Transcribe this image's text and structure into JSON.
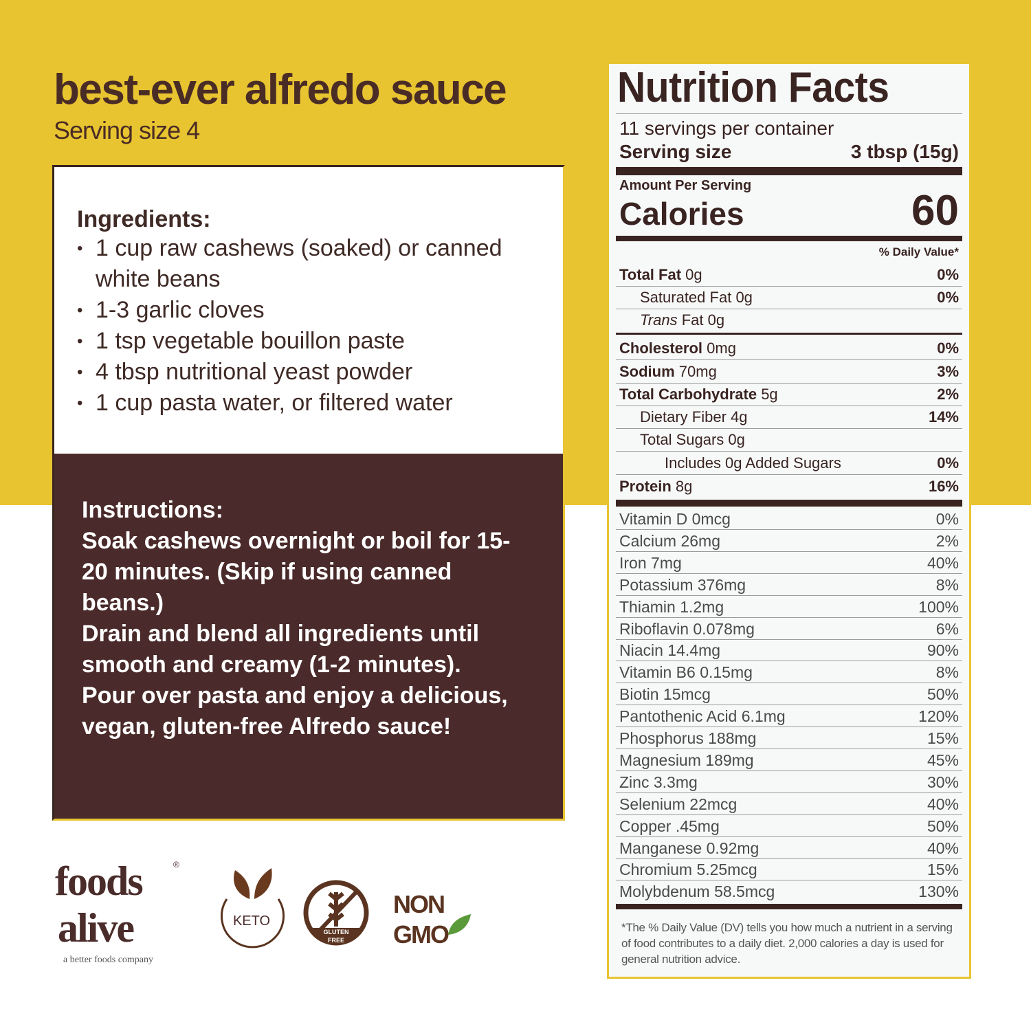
{
  "recipe": {
    "title": "best-ever alfredo sauce",
    "serving_size": "Serving size 4",
    "ingredients_heading": "Ingredients:",
    "ingredients": [
      "1 cup raw cashews (soaked) or canned white beans",
      "1-3 garlic cloves",
      "1 tsp vegetable bouillon paste",
      "4 tbsp nutritional yeast powder",
      "1 cup pasta water, or filtered water"
    ],
    "instructions_heading": "Instructions:",
    "instructions": [
      "Soak cashews overnight or boil for 15-20 minutes. (Skip if using canned beans.)",
      "Drain and blend all ingredients until smooth and creamy (1-2 minutes).",
      "Pour over pasta and enjoy a delicious, vegan, gluten-free Alfredo sauce!"
    ]
  },
  "nutrition": {
    "title": "Nutrition Facts",
    "servings_per_container": "11 servings per container",
    "serving_size_label": "Serving size",
    "serving_size_value": "3 tbsp (15g)",
    "amount_per_serving": "Amount Per Serving",
    "calories_label": "Calories",
    "calories_value": "60",
    "dv_header": "% Daily Value*",
    "main_rows": [
      {
        "name": "Total Fat",
        "amount": "0g",
        "dv": "0%",
        "bold": true,
        "indent": 0
      },
      {
        "name": "Saturated Fat",
        "amount": "0g",
        "dv": "0%",
        "bold": false,
        "indent": 1
      },
      {
        "name": "Trans",
        "amount": "Fat 0g",
        "dv": "",
        "bold": false,
        "indent": 1,
        "italic": true
      },
      {
        "name": "Cholesterol",
        "amount": "0mg",
        "dv": "0%",
        "bold": true,
        "indent": 0
      },
      {
        "name": "Sodium",
        "amount": "70mg",
        "dv": "3%",
        "bold": true,
        "indent": 0
      },
      {
        "name": "Total Carbohydrate",
        "amount": "5g",
        "dv": "2%",
        "bold": true,
        "indent": 0
      },
      {
        "name": "Dietary Fiber",
        "amount": "4g",
        "dv": "14%",
        "bold": false,
        "indent": 1
      },
      {
        "name": "Total Sugars",
        "amount": "0g",
        "dv": "",
        "bold": false,
        "indent": 1
      },
      {
        "name": "Includes 0g Added Sugars",
        "amount": "",
        "dv": "0%",
        "bold": false,
        "indent": 2
      },
      {
        "name": "Protein",
        "amount": "8g",
        "dv": "16%",
        "bold": true,
        "indent": 0
      }
    ],
    "vitamin_rows": [
      {
        "name": "Vitamin D 0mcg",
        "dv": "0%"
      },
      {
        "name": "Calcium 26mg",
        "dv": "2%"
      },
      {
        "name": "Iron 7mg",
        "dv": "40%"
      },
      {
        "name": "Potassium 376mg",
        "dv": "8%"
      },
      {
        "name": "Thiamin 1.2mg",
        "dv": "100%"
      },
      {
        "name": "Riboflavin 0.078mg",
        "dv": "6%"
      },
      {
        "name": "Niacin 14.4mg",
        "dv": "90%"
      },
      {
        "name": "Vitamin B6 0.15mg",
        "dv": "8%"
      },
      {
        "name": "Biotin 15mcg",
        "dv": "50%"
      },
      {
        "name": "Pantothenic Acid 6.1mg",
        "dv": "120%"
      },
      {
        "name": "Phosphorus 188mg",
        "dv": "15%"
      },
      {
        "name": "Magnesium 189mg",
        "dv": "45%"
      },
      {
        "name": "Zinc 3.3mg",
        "dv": "30%"
      },
      {
        "name": "Selenium 22mcg",
        "dv": "40%"
      },
      {
        "name": "Copper .45mg",
        "dv": "50%"
      },
      {
        "name": "Manganese 0.92mg",
        "dv": "40%"
      },
      {
        "name": "Chromium 5.25mcg",
        "dv": "15%"
      },
      {
        "name": "Molybdenum 58.5mcg",
        "dv": "130%"
      }
    ],
    "footnote": "*The % Daily Value (DV) tells you how much a nutrient in a serving of food contributes to a daily diet. 2,000 calories a day is used for general nutrition advice."
  },
  "logos": {
    "brand": "foods alive",
    "brand_tagline": "a better foods company",
    "keto": "KETO",
    "gluten_free": "GLUTEN FREE",
    "non_gmo": "NON GMO"
  },
  "colors": {
    "yellow": "#e8c430",
    "brown": "#4a2a2a",
    "green_leaf": "#5a9a3a"
  }
}
